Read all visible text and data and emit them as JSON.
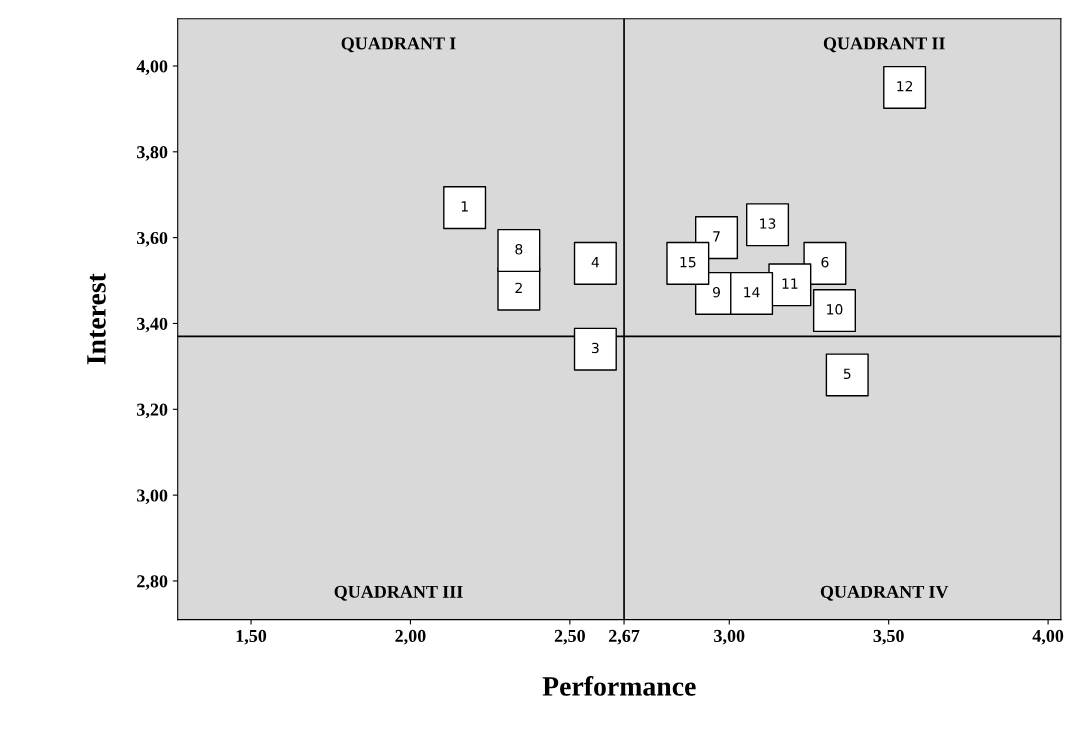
{
  "chart_data": {
    "type": "scatter",
    "xlabel": "Performance",
    "ylabel": "Interest",
    "x": [
      2.17,
      2.34,
      2.58,
      2.58,
      3.37,
      3.3,
      2.96,
      2.34,
      2.96,
      3.33,
      3.19,
      3.55,
      3.12,
      3.07,
      2.87
    ],
    "values": [
      3.67,
      3.48,
      3.34,
      3.54,
      3.28,
      3.54,
      3.6,
      3.57,
      3.47,
      3.43,
      3.49,
      3.95,
      3.63,
      3.47,
      3.54
    ],
    "color": "#ffffff",
    "marker": "square",
    "grid": false,
    "xlim": [
      1.27,
      4.04
    ],
    "ylim": [
      2.71,
      4.11
    ],
    "xticks": [
      {
        "value": 1.5,
        "label": "1,50"
      },
      {
        "value": 2.0,
        "label": "2,00"
      },
      {
        "value": 2.5,
        "label": "2,50"
      },
      {
        "value": 2.67,
        "label": "2,67"
      },
      {
        "value": 3.0,
        "label": "3,00"
      },
      {
        "value": 3.5,
        "label": "3,50"
      },
      {
        "value": 4.0,
        "label": "4,00"
      }
    ],
    "yticks": [
      {
        "value": 2.8,
        "label": "2,80"
      },
      {
        "value": 3.0,
        "label": "3,00"
      },
      {
        "value": 3.2,
        "label": "3,20"
      },
      {
        "value": 3.4,
        "label": "3,40"
      },
      {
        "value": 3.6,
        "label": "3,60"
      },
      {
        "value": 3.8,
        "label": "3,80"
      },
      {
        "value": 4.0,
        "label": "4,00"
      }
    ],
    "ref_lines": [
      {
        "axis": "x",
        "value": 2.67,
        "color": "#000000"
      },
      {
        "axis": "y",
        "value": 3.37,
        "color": "#000000"
      }
    ],
    "annotations": [
      "QUADRANT I",
      "QUADRANT II",
      "QUADRANT III",
      "QUADRANT IV",
      {
        "text": "1",
        "x": 2.17,
        "y": 3.67
      },
      {
        "text": "2",
        "x": 2.34,
        "y": 3.48
      },
      {
        "text": "3",
        "x": 2.58,
        "y": 3.34
      },
      {
        "text": "4",
        "x": 2.58,
        "y": 3.54
      },
      {
        "text": "5",
        "x": 3.37,
        "y": 3.28
      },
      {
        "text": "6",
        "x": 3.3,
        "y": 3.54
      },
      {
        "text": "7",
        "x": 2.96,
        "y": 3.6
      },
      {
        "text": "8",
        "x": 2.34,
        "y": 3.57
      },
      {
        "text": "9",
        "x": 2.96,
        "y": 3.47
      },
      {
        "text": "10",
        "x": 3.33,
        "y": 3.43
      },
      {
        "text": "11",
        "x": 3.19,
        "y": 3.49
      },
      {
        "text": "12",
        "x": 3.55,
        "y": 3.95
      },
      {
        "text": "13",
        "x": 3.12,
        "y": 3.63
      },
      {
        "text": "14",
        "x": 3.07,
        "y": 3.47
      },
      {
        "text": "15",
        "x": 2.87,
        "y": 3.54
      }
    ]
  }
}
